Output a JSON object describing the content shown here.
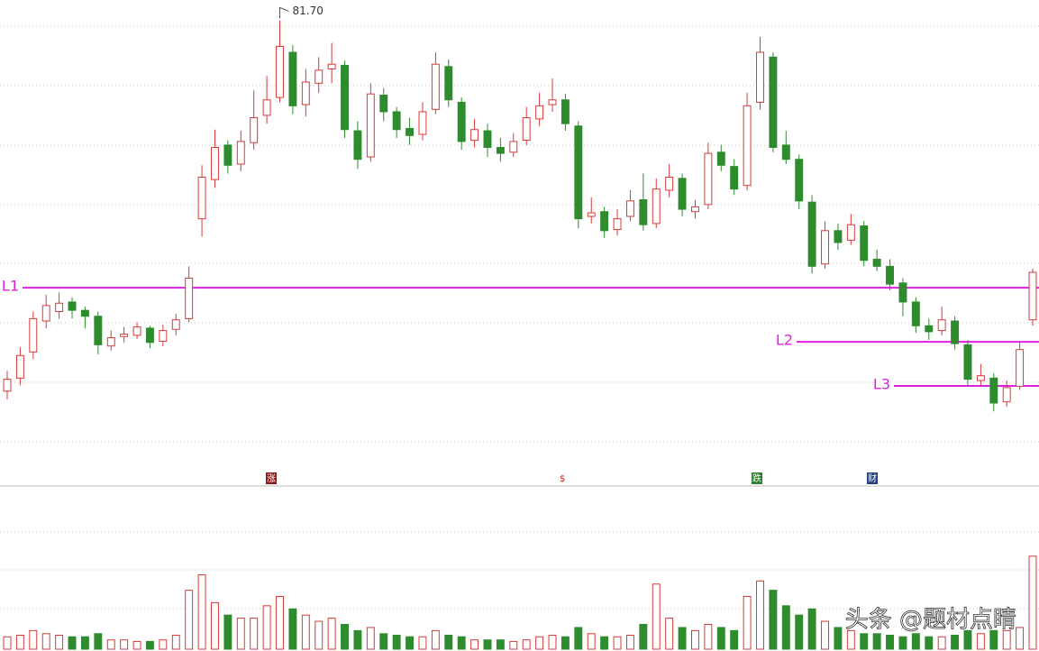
{
  "chart_data": {
    "type": "candlestick",
    "max_high_label": "81.70",
    "ylim": [
      42.6,
      83.4
    ],
    "volume_ylim": [
      0,
      100
    ],
    "up_color": "#d83a3a",
    "down_color": "#2e8b2e",
    "open": [
      50.5,
      51.6,
      53.8,
      56.4,
      57.2,
      58.0,
      57.3,
      56.8,
      54.3,
      55.1,
      55.2,
      55.8,
      54.7,
      55.7,
      56.6,
      65.0,
      68.3,
      71.2,
      69.6,
      71.4,
      73.7,
      75.2,
      79.0,
      74.6,
      76.4,
      77.6,
      77.9,
      72.4,
      70.2,
      75.4,
      74.0,
      72.6,
      72.1,
      74.2,
      77.8,
      74.8,
      71.6,
      72.4,
      71.0,
      70.6,
      71.6,
      73.4,
      74.6,
      75.0,
      72.8,
      65.2,
      65.6,
      64.1,
      65.2,
      66.6,
      64.6,
      67.4,
      68.4,
      65.6,
      66.2,
      70.6,
      69.4,
      67.8,
      74.8,
      78.6,
      71.2,
      70.0,
      66.4,
      61.2,
      64.0,
      63.2,
      64.4,
      61.6,
      61.0,
      59.6,
      58.0,
      56.0,
      55.6,
      56.4,
      54.4,
      51.4,
      51.6,
      49.6,
      50.9,
      56.5
    ],
    "high": [
      52.2,
      54.2,
      57.2,
      58.6,
      58.8,
      58.4,
      57.6,
      57.2,
      55.6,
      55.9,
      56.3,
      56.0,
      56.1,
      57.0,
      61.0,
      69.5,
      72.5,
      71.6,
      72.4,
      75.8,
      77.0,
      81.7,
      79.6,
      77.6,
      78.6,
      79.8,
      78.3,
      73.2,
      76.4,
      76.0,
      74.4,
      73.5,
      74.8,
      79.0,
      78.4,
      75.2,
      73.4,
      73.0,
      71.8,
      72.2,
      74.4,
      75.6,
      76.8,
      75.5,
      73.2,
      66.8,
      66.0,
      65.8,
      67.4,
      68.8,
      68.4,
      69.6,
      68.8,
      66.6,
      71.4,
      71.2,
      70.0,
      75.6,
      80.3,
      79.0,
      72.4,
      70.4,
      67.0,
      64.8,
      64.6,
      65.4,
      64.8,
      62.4,
      61.6,
      60.0,
      58.4,
      56.6,
      57.6,
      56.8,
      54.8,
      52.8,
      52.0,
      51.4,
      54.6,
      60.8
    ],
    "low": [
      49.8,
      51.0,
      53.2,
      55.8,
      56.6,
      56.6,
      55.8,
      53.6,
      53.9,
      54.6,
      54.9,
      54.1,
      54.3,
      55.2,
      56.3,
      63.5,
      67.6,
      68.8,
      69.0,
      70.8,
      73.0,
      74.8,
      73.8,
      73.6,
      75.6,
      76.4,
      71.8,
      69.2,
      69.8,
      73.2,
      71.8,
      71.2,
      71.6,
      73.8,
      74.4,
      70.8,
      71.0,
      70.2,
      69.8,
      70.2,
      71.2,
      72.8,
      74.0,
      72.4,
      64.2,
      64.6,
      63.4,
      63.6,
      64.8,
      64.0,
      64.2,
      66.8,
      65.2,
      65.0,
      65.8,
      69.0,
      67.0,
      67.4,
      74.2,
      70.6,
      69.6,
      65.8,
      60.4,
      60.8,
      62.4,
      62.8,
      61.0,
      60.6,
      59.0,
      56.8,
      55.4,
      54.8,
      55.2,
      54.0,
      51.0,
      51.0,
      48.8,
      49.2,
      50.6,
      56.0
    ],
    "close": [
      51.5,
      53.5,
      56.6,
      57.7,
      57.9,
      57.3,
      56.8,
      54.4,
      55.0,
      55.3,
      55.9,
      54.6,
      55.6,
      56.5,
      60.0,
      68.5,
      71.0,
      69.5,
      71.5,
      73.5,
      75.0,
      79.5,
      74.5,
      76.5,
      77.5,
      78.0,
      72.5,
      70.0,
      75.5,
      74.0,
      72.5,
      72.0,
      74.0,
      78.0,
      75.0,
      71.5,
      72.5,
      71.0,
      70.5,
      71.5,
      73.5,
      74.5,
      75.0,
      73.0,
      65.0,
      65.5,
      64.0,
      65.0,
      66.5,
      64.5,
      67.5,
      68.5,
      65.8,
      66.0,
      70.5,
      69.5,
      67.5,
      74.5,
      79.0,
      71.0,
      70.0,
      66.5,
      61.0,
      64.0,
      63.0,
      64.5,
      61.5,
      61.0,
      59.5,
      58.0,
      56.0,
      55.5,
      56.5,
      54.5,
      51.5,
      51.8,
      49.5,
      50.8,
      54.0,
      60.5
    ],
    "volume": [
      8,
      9,
      12,
      10,
      9,
      8,
      8,
      10,
      6,
      6,
      5,
      5,
      6,
      9,
      38,
      48,
      30,
      22,
      20,
      20,
      28,
      34,
      26,
      22,
      18,
      20,
      16,
      12,
      14,
      10,
      9,
      8,
      8,
      12,
      9,
      8,
      6,
      6,
      6,
      5,
      6,
      8,
      9,
      8,
      14,
      10,
      8,
      8,
      9,
      16,
      42,
      20,
      14,
      12,
      16,
      14,
      12,
      34,
      44,
      38,
      28,
      22,
      26,
      18,
      14,
      12,
      10,
      10,
      9,
      8,
      10,
      8,
      8,
      9,
      12,
      10,
      12,
      12,
      14,
      60
    ],
    "levels": [
      {
        "name": "L1",
        "value": 59.2,
        "color": "#e020e0"
      },
      {
        "name": "L2",
        "value": 54.65,
        "color": "#e020e0"
      },
      {
        "name": "L3",
        "value": 50.94,
        "color": "#e020e0"
      }
    ],
    "events": [
      {
        "label": "涨",
        "color": "#8b1a1a"
      },
      {
        "label": "$",
        "color": "#c81e1e"
      },
      {
        "label": "跌",
        "color": "#2e7d2e"
      },
      {
        "label": "财",
        "color": "#1f3f7a"
      }
    ]
  },
  "watermark": "头条 @题材点睛"
}
